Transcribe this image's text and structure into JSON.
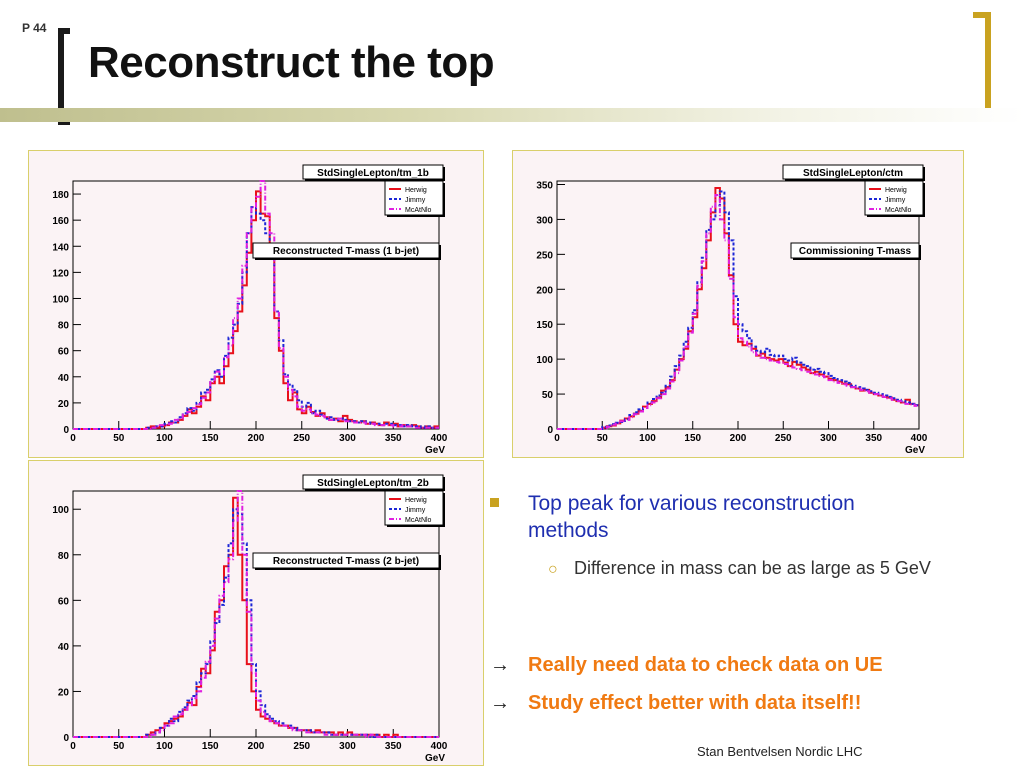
{
  "slide": {
    "page_number": "P 44",
    "title": "Reconstruct the top",
    "footer": "Stan Bentvelsen Nordic LHC",
    "colors": {
      "title_bar": "#bfbf8e",
      "bracket_right": "#c9a220",
      "bullet_blue": "#1f2fb0",
      "emphasis_orange": "#f07a12"
    }
  },
  "bullets": {
    "main": "Top peak for various reconstruction methods",
    "sub": "Difference in mass can be as large as 5 GeV",
    "arrow1": "Really need data to check data on UE",
    "arrow2": "Study effect better with data itself!!",
    "arrow_symbol": "→",
    "sub_marker": "○"
  },
  "chart_data": [
    {
      "type": "histogram",
      "name_box": "StdSingleLepton/tm_1b",
      "annotation": "Reconstructed T-mass (1 b-jet)",
      "xlabel": "GeV",
      "xlim": [
        0,
        400
      ],
      "ylim": [
        0,
        190
      ],
      "xticks": [
        0,
        50,
        100,
        150,
        200,
        250,
        300,
        350,
        400
      ],
      "yticks": [
        0,
        20,
        40,
        60,
        80,
        100,
        120,
        140,
        160,
        180
      ],
      "bin_width": 5,
      "legend": [
        "Herwig",
        "Jimmy",
        "McAtNlo"
      ],
      "series": [
        {
          "name": "Herwig",
          "color": "#e8101a",
          "style": "solid",
          "values": [
            0,
            0,
            0,
            0,
            0,
            0,
            0,
            0,
            0,
            0,
            0,
            0,
            0,
            0,
            0,
            0,
            1,
            2,
            1,
            2,
            3,
            5,
            5,
            7,
            10,
            15,
            12,
            17,
            25,
            22,
            35,
            40,
            35,
            48,
            58,
            75,
            90,
            110,
            135,
            160,
            182,
            165,
            163,
            140,
            85,
            60,
            35,
            22,
            28,
            15,
            12,
            17,
            13,
            10,
            12,
            9,
            7,
            8,
            6,
            10,
            7,
            6,
            5,
            6,
            4,
            5,
            4,
            3,
            5,
            3,
            4,
            2,
            3,
            2,
            3,
            2,
            1,
            2,
            1,
            2
          ]
        },
        {
          "name": "Jimmy",
          "color": "#1c26d6",
          "style": "dotted",
          "values": [
            0,
            0,
            0,
            0,
            0,
            0,
            0,
            0,
            0,
            0,
            0,
            0,
            0,
            0,
            0,
            0,
            1,
            1,
            2,
            2,
            4,
            6,
            5,
            9,
            12,
            16,
            14,
            20,
            28,
            30,
            38,
            45,
            40,
            56,
            70,
            80,
            96,
            120,
            150,
            170,
            165,
            160,
            150,
            140,
            90,
            68,
            42,
            34,
            30,
            22,
            17,
            20,
            12,
            14,
            11,
            8,
            9,
            7,
            8,
            7,
            6,
            6,
            5,
            6,
            5,
            4,
            4,
            3,
            4,
            4,
            3,
            3,
            2,
            3,
            2,
            2,
            1,
            2,
            1,
            1
          ]
        },
        {
          "name": "McAtNlo",
          "color": "#e020e0",
          "style": "dashdot",
          "values": [
            0,
            0,
            0,
            0,
            0,
            0,
            0,
            0,
            0,
            0,
            0,
            0,
            0,
            0,
            0,
            0,
            0,
            1,
            2,
            3,
            3,
            4,
            7,
            8,
            11,
            13,
            16,
            19,
            24,
            28,
            36,
            44,
            42,
            55,
            64,
            85,
            100,
            125,
            150,
            170,
            178,
            190,
            165,
            150,
            90,
            62,
            40,
            30,
            25,
            17,
            14,
            15,
            12,
            11,
            10,
            9,
            7,
            7,
            8,
            6,
            6,
            5,
            5,
            5,
            4,
            4,
            3,
            3,
            3,
            3,
            2,
            2,
            3,
            2,
            2,
            1,
            1,
            1,
            1,
            1
          ]
        }
      ]
    },
    {
      "type": "histogram",
      "name_box": "StdSingleLepton/ctm",
      "annotation": "Commissioning T-mass",
      "xlabel": "GeV",
      "xlim": [
        0,
        400
      ],
      "ylim": [
        0,
        355
      ],
      "xticks": [
        0,
        50,
        100,
        150,
        200,
        250,
        300,
        350,
        400
      ],
      "yticks": [
        0,
        50,
        100,
        150,
        200,
        250,
        300,
        350
      ],
      "bin_width": 5,
      "legend": [
        "Herwig",
        "Jimmy",
        "McAtNlo"
      ],
      "series": [
        {
          "name": "Herwig",
          "color": "#e8101a",
          "style": "solid",
          "values": [
            0,
            0,
            0,
            0,
            0,
            0,
            0,
            0,
            0,
            0,
            2,
            4,
            5,
            8,
            12,
            15,
            18,
            22,
            26,
            32,
            36,
            40,
            45,
            55,
            60,
            70,
            85,
            100,
            115,
            140,
            160,
            200,
            230,
            270,
            310,
            345,
            330,
            280,
            220,
            150,
            125,
            120,
            122,
            115,
            105,
            108,
            102,
            100,
            98,
            100,
            95,
            90,
            96,
            92,
            88,
            85,
            80,
            82,
            78,
            75,
            72,
            70,
            68,
            65,
            64,
            60,
            58,
            55,
            56,
            52,
            50,
            48,
            46,
            45,
            42,
            40,
            38,
            42,
            36,
            34
          ]
        },
        {
          "name": "Jimmy",
          "color": "#1c26d6",
          "style": "dotted",
          "values": [
            0,
            0,
            0,
            0,
            0,
            0,
            0,
            0,
            0,
            0,
            3,
            5,
            7,
            9,
            10,
            14,
            20,
            24,
            28,
            30,
            38,
            43,
            48,
            52,
            62,
            75,
            90,
            105,
            125,
            145,
            170,
            210,
            245,
            285,
            300,
            320,
            340,
            310,
            270,
            190,
            150,
            140,
            130,
            118,
            112,
            110,
            115,
            106,
            104,
            105,
            100,
            98,
            102,
            95,
            92,
            90,
            85,
            86,
            82,
            80,
            76,
            73,
            70,
            68,
            66,
            62,
            60,
            58,
            56,
            54,
            52,
            50,
            48,
            46,
            44,
            42,
            40,
            38,
            36,
            34
          ]
        },
        {
          "name": "McAtNlo",
          "color": "#e020e0",
          "style": "dashdot",
          "values": [
            0,
            0,
            0,
            0,
            0,
            0,
            0,
            0,
            0,
            0,
            1,
            3,
            6,
            8,
            11,
            13,
            17,
            21,
            25,
            30,
            34,
            38,
            44,
            50,
            58,
            68,
            80,
            98,
            118,
            138,
            165,
            205,
            240,
            280,
            318,
            335,
            300,
            270,
            215,
            160,
            130,
            125,
            118,
            110,
            106,
            102,
            100,
            98,
            96,
            95,
            93,
            90,
            88,
            86,
            84,
            82,
            80,
            78,
            76,
            74,
            70,
            68,
            66,
            64,
            62,
            60,
            58,
            56,
            54,
            52,
            50,
            48,
            46,
            44,
            42,
            40,
            38,
            36,
            35,
            33
          ]
        }
      ]
    },
    {
      "type": "histogram",
      "name_box": "StdSingleLepton/tm_2b",
      "annotation": "Reconstructed T-mass (2 b-jet)",
      "xlabel": "GeV",
      "xlim": [
        0,
        400
      ],
      "ylim": [
        0,
        108
      ],
      "xticks": [
        0,
        50,
        100,
        150,
        200,
        250,
        300,
        350,
        400
      ],
      "yticks": [
        0,
        20,
        40,
        60,
        80,
        100
      ],
      "bin_width": 5,
      "legend": [
        "Herwig",
        "Jimmy",
        "McAtNlo"
      ],
      "series": [
        {
          "name": "Herwig",
          "color": "#e8101a",
          "style": "solid",
          "values": [
            0,
            0,
            0,
            0,
            0,
            0,
            0,
            0,
            0,
            0,
            0,
            0,
            0,
            0,
            0,
            0,
            1,
            2,
            3,
            4,
            6,
            7,
            8,
            9,
            12,
            15,
            14,
            22,
            30,
            28,
            38,
            55,
            60,
            75,
            80,
            105,
            80,
            60,
            32,
            20,
            12,
            9,
            8,
            7,
            6,
            5,
            5,
            4,
            4,
            3,
            3,
            3,
            2,
            3,
            2,
            2,
            2,
            1,
            2,
            1,
            2,
            1,
            1,
            1,
            1,
            1,
            1,
            0,
            1,
            0,
            1,
            0,
            0,
            0,
            0,
            0,
            0,
            0,
            0,
            0
          ]
        },
        {
          "name": "Jimmy",
          "color": "#1c26d6",
          "style": "dotted",
          "values": [
            0,
            0,
            0,
            0,
            0,
            0,
            0,
            0,
            0,
            0,
            0,
            0,
            0,
            0,
            0,
            0,
            1,
            1,
            2,
            4,
            5,
            8,
            7,
            11,
            13,
            16,
            18,
            24,
            28,
            32,
            42,
            50,
            58,
            70,
            85,
            100,
            98,
            85,
            60,
            32,
            20,
            14,
            10,
            8,
            7,
            6,
            5,
            5,
            4,
            3,
            3,
            3,
            2,
            2,
            2,
            2,
            1,
            1,
            1,
            1,
            1,
            1,
            1,
            1,
            1,
            0,
            1,
            0,
            0,
            0,
            0,
            0,
            0,
            0,
            0,
            0,
            0,
            0,
            0,
            0
          ]
        },
        {
          "name": "McAtNlo",
          "color": "#e020e0",
          "style": "dashdot",
          "values": [
            0,
            0,
            0,
            0,
            0,
            0,
            0,
            0,
            0,
            0,
            0,
            0,
            0,
            0,
            0,
            0,
            0,
            1,
            2,
            3,
            5,
            6,
            9,
            10,
            12,
            14,
            17,
            20,
            26,
            33,
            40,
            52,
            62,
            68,
            78,
            95,
            108,
            80,
            55,
            28,
            16,
            11,
            9,
            7,
            6,
            5,
            5,
            4,
            3,
            3,
            3,
            2,
            2,
            2,
            2,
            1,
            1,
            1,
            1,
            1,
            1,
            1,
            1,
            1,
            0,
            1,
            0,
            0,
            0,
            0,
            0,
            0,
            0,
            0,
            0,
            0,
            0,
            0,
            0,
            0
          ]
        }
      ]
    }
  ]
}
